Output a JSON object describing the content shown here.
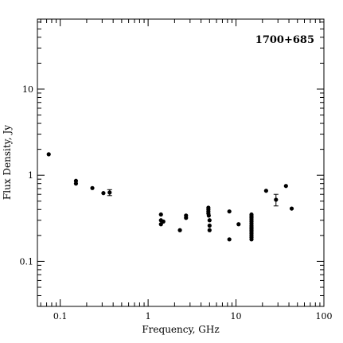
{
  "chart_data": {
    "type": "scatter",
    "title": "1700+685",
    "xlabel": "Frequency, GHz",
    "ylabel": "Flux Density, Jy",
    "x_scale": "log",
    "y_scale": "log",
    "xlim": [
      0.055,
      100
    ],
    "ylim": [
      0.03,
      65
    ],
    "grid": false,
    "x_ticks": [
      {
        "value": 0.1,
        "label": "0.1"
      },
      {
        "value": 1,
        "label": "1"
      },
      {
        "value": 10,
        "label": "10"
      },
      {
        "value": 100,
        "label": "100"
      }
    ],
    "y_ticks": [
      {
        "value": 0.1,
        "label": "0.1"
      },
      {
        "value": 1,
        "label": "1"
      },
      {
        "value": 10,
        "label": "10"
      }
    ],
    "series": [
      {
        "points": [
          {
            "x": 0.074,
            "y": 1.75
          },
          {
            "x": 0.151,
            "y": 0.86
          },
          {
            "x": 0.151,
            "y": 0.8
          },
          {
            "x": 0.232,
            "y": 0.71
          },
          {
            "x": 0.31,
            "y": 0.62
          },
          {
            "x": 0.365,
            "y": 0.63,
            "yerr": 0.05
          },
          {
            "x": 1.4,
            "y": 0.35
          },
          {
            "x": 1.4,
            "y": 0.3
          },
          {
            "x": 1.4,
            "y": 0.27
          },
          {
            "x": 1.49,
            "y": 0.29
          },
          {
            "x": 2.3,
            "y": 0.23
          },
          {
            "x": 2.7,
            "y": 0.34
          },
          {
            "x": 2.7,
            "y": 0.32
          },
          {
            "x": 4.85,
            "y": 0.42
          },
          {
            "x": 4.85,
            "y": 0.4
          },
          {
            "x": 4.85,
            "y": 0.38
          },
          {
            "x": 4.85,
            "y": 0.36
          },
          {
            "x": 4.9,
            "y": 0.34
          },
          {
            "x": 5.0,
            "y": 0.3
          },
          {
            "x": 5.0,
            "y": 0.26
          },
          {
            "x": 5.0,
            "y": 0.23
          },
          {
            "x": 8.4,
            "y": 0.38
          },
          {
            "x": 8.4,
            "y": 0.18
          },
          {
            "x": 10.7,
            "y": 0.27
          },
          {
            "x": 15.0,
            "y": 0.35
          },
          {
            "x": 15.0,
            "y": 0.335
          },
          {
            "x": 15.0,
            "y": 0.32
          },
          {
            "x": 15.0,
            "y": 0.305
          },
          {
            "x": 15.0,
            "y": 0.29
          },
          {
            "x": 15.0,
            "y": 0.275
          },
          {
            "x": 15.0,
            "y": 0.26
          },
          {
            "x": 15.0,
            "y": 0.25
          },
          {
            "x": 15.0,
            "y": 0.24
          },
          {
            "x": 15.0,
            "y": 0.23
          },
          {
            "x": 15.0,
            "y": 0.22
          },
          {
            "x": 15.0,
            "y": 0.21
          },
          {
            "x": 15.0,
            "y": 0.2
          },
          {
            "x": 15.0,
            "y": 0.19
          },
          {
            "x": 15.0,
            "y": 0.18
          },
          {
            "x": 22.0,
            "y": 0.66
          },
          {
            "x": 28.5,
            "y": 0.52,
            "yerr": 0.08
          },
          {
            "x": 37.0,
            "y": 0.75
          },
          {
            "x": 43.0,
            "y": 0.41
          }
        ]
      }
    ]
  }
}
